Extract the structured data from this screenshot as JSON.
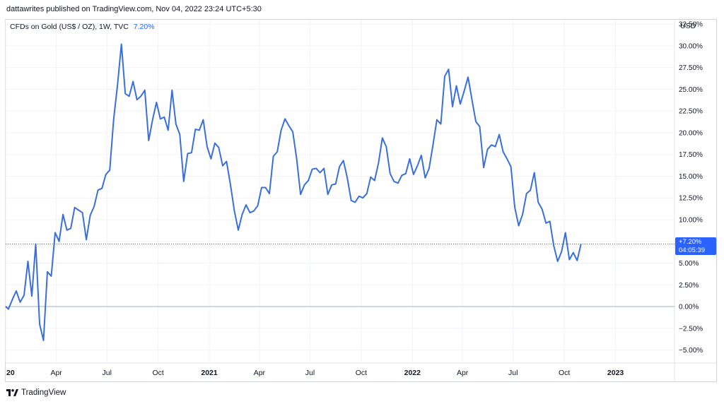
{
  "header": {
    "published_line": "dattawrites published on TradingView.com, Nov 04, 2022 23:24 UTC+5:30"
  },
  "legend": {
    "symbol": "CFDs on Gold (US$ / OZ), 1W, TVC",
    "change": "7.20%"
  },
  "currency": "USD",
  "last_value": {
    "change": "+7.20%",
    "countdown": "04:05:39"
  },
  "branding": {
    "name": "TradingView"
  },
  "colors": {
    "line": "#3b6fd8",
    "badge": "#2962ff",
    "grid": "#f0f3fa",
    "zero_line": "#9db2bd"
  },
  "chart_data": {
    "type": "line",
    "title": "CFDs on Gold (US$ / OZ), 1W, TVC",
    "ylabel": "USD",
    "yaxis_format": "percent",
    "ylim": [
      -6.5,
      33
    ],
    "xlim": [
      "2020-01-01",
      "2023-04-17"
    ],
    "y_ticks": [
      32.5,
      30,
      27.5,
      25,
      22.5,
      20,
      17.5,
      15,
      12.5,
      10,
      7.5,
      5,
      2.5,
      0,
      -2.5,
      -5
    ],
    "y_tick_labels": [
      "32.50%",
      "30.00%",
      "27.50%",
      "25.00%",
      "22.50%",
      "20.00%",
      "17.50%",
      "15.00%",
      "12.50%",
      "10.00%",
      "",
      "5.00%",
      "2.50%",
      "0.00%",
      "−2.50%",
      "−5.00%"
    ],
    "x_ticks": [
      {
        "date": "2020-01-01",
        "label": "20",
        "bold": true
      },
      {
        "date": "2020-04-01",
        "label": "Apr",
        "bold": false
      },
      {
        "date": "2020-07-01",
        "label": "Jul",
        "bold": false
      },
      {
        "date": "2020-10-01",
        "label": "Oct",
        "bold": false
      },
      {
        "date": "2021-01-01",
        "label": "2021",
        "bold": true
      },
      {
        "date": "2021-04-01",
        "label": "Apr",
        "bold": false
      },
      {
        "date": "2021-07-01",
        "label": "Jul",
        "bold": false
      },
      {
        "date": "2021-10-01",
        "label": "Oct",
        "bold": false
      },
      {
        "date": "2022-01-01",
        "label": "2022",
        "bold": true
      },
      {
        "date": "2022-04-01",
        "label": "Apr",
        "bold": false
      },
      {
        "date": "2022-07-01",
        "label": "Jul",
        "bold": false
      },
      {
        "date": "2022-10-01",
        "label": "Oct",
        "bold": false
      },
      {
        "date": "2023-01-01",
        "label": "2023",
        "bold": true
      }
    ],
    "series": [
      {
        "values": [
          [
            "2020-01-01",
            0.0
          ],
          [
            "2020-01-06",
            -0.3
          ],
          [
            "2020-01-13",
            0.8
          ],
          [
            "2020-01-20",
            1.8
          ],
          [
            "2020-01-27",
            0.5
          ],
          [
            "2020-02-03",
            1.3
          ],
          [
            "2020-02-10",
            5.2
          ],
          [
            "2020-02-17",
            1.2
          ],
          [
            "2020-02-24",
            7.2
          ],
          [
            "2020-03-02",
            -2.0
          ],
          [
            "2020-03-09",
            -3.9
          ],
          [
            "2020-03-16",
            4.0
          ],
          [
            "2020-03-23",
            3.5
          ],
          [
            "2020-03-30",
            8.5
          ],
          [
            "2020-04-06",
            7.5
          ],
          [
            "2020-04-13",
            10.6
          ],
          [
            "2020-04-20",
            8.8
          ],
          [
            "2020-04-27",
            9.0
          ],
          [
            "2020-05-04",
            11.4
          ],
          [
            "2020-05-11",
            11.1
          ],
          [
            "2020-05-18",
            10.8
          ],
          [
            "2020-05-25",
            7.7
          ],
          [
            "2020-06-01",
            10.5
          ],
          [
            "2020-06-08",
            11.5
          ],
          [
            "2020-06-15",
            13.4
          ],
          [
            "2020-06-22",
            13.6
          ],
          [
            "2020-06-29",
            15.2
          ],
          [
            "2020-07-06",
            15.7
          ],
          [
            "2020-07-13",
            21.5
          ],
          [
            "2020-07-20",
            25.5
          ],
          [
            "2020-07-27",
            30.2
          ],
          [
            "2020-08-03",
            24.5
          ],
          [
            "2020-08-10",
            24.2
          ],
          [
            "2020-08-17",
            25.9
          ],
          [
            "2020-08-24",
            23.8
          ],
          [
            "2020-08-31",
            24.2
          ],
          [
            "2020-09-07",
            24.9
          ],
          [
            "2020-09-14",
            19.1
          ],
          [
            "2020-09-21",
            21.5
          ],
          [
            "2020-09-28",
            23.5
          ],
          [
            "2020-10-05",
            21.6
          ],
          [
            "2020-10-12",
            21.8
          ],
          [
            "2020-10-19",
            20.3
          ],
          [
            "2020-10-26",
            24.9
          ],
          [
            "2020-11-02",
            21.0
          ],
          [
            "2020-11-09",
            19.8
          ],
          [
            "2020-11-16",
            14.4
          ],
          [
            "2020-11-23",
            17.6
          ],
          [
            "2020-11-30",
            17.7
          ],
          [
            "2020-12-07",
            20.4
          ],
          [
            "2020-12-14",
            20.3
          ],
          [
            "2020-12-21",
            21.5
          ],
          [
            "2020-12-28",
            18.4
          ],
          [
            "2021-01-04",
            17.0
          ],
          [
            "2021-01-11",
            18.8
          ],
          [
            "2021-01-18",
            18.3
          ],
          [
            "2021-01-25",
            16.2
          ],
          [
            "2021-02-01",
            16.7
          ],
          [
            "2021-02-08",
            14.0
          ],
          [
            "2021-02-15",
            11.0
          ],
          [
            "2021-02-22",
            8.8
          ],
          [
            "2021-03-01",
            10.6
          ],
          [
            "2021-03-08",
            11.7
          ],
          [
            "2021-03-15",
            10.8
          ],
          [
            "2021-03-22",
            11.0
          ],
          [
            "2021-03-29",
            11.6
          ],
          [
            "2021-04-05",
            13.7
          ],
          [
            "2021-04-12",
            13.7
          ],
          [
            "2021-04-19",
            13.0
          ],
          [
            "2021-04-26",
            17.3
          ],
          [
            "2021-05-03",
            17.8
          ],
          [
            "2021-05-10",
            20.3
          ],
          [
            "2021-05-17",
            21.6
          ],
          [
            "2021-05-24",
            20.8
          ],
          [
            "2021-05-31",
            20.1
          ],
          [
            "2021-06-07",
            17.0
          ],
          [
            "2021-06-14",
            12.9
          ],
          [
            "2021-06-21",
            14.0
          ],
          [
            "2021-06-28",
            14.5
          ],
          [
            "2021-07-05",
            15.8
          ],
          [
            "2021-07-12",
            15.9
          ],
          [
            "2021-07-19",
            15.4
          ],
          [
            "2021-07-26",
            15.9
          ],
          [
            "2021-08-02",
            12.9
          ],
          [
            "2021-08-09",
            14.0
          ],
          [
            "2021-08-16",
            14.1
          ],
          [
            "2021-08-23",
            16.1
          ],
          [
            "2021-08-30",
            16.8
          ],
          [
            "2021-09-06",
            14.8
          ],
          [
            "2021-09-13",
            12.2
          ],
          [
            "2021-09-20",
            12.0
          ],
          [
            "2021-09-27",
            12.7
          ],
          [
            "2021-10-04",
            12.5
          ],
          [
            "2021-10-11",
            13.0
          ],
          [
            "2021-10-18",
            14.9
          ],
          [
            "2021-10-25",
            14.5
          ],
          [
            "2021-11-01",
            16.5
          ],
          [
            "2021-11-08",
            19.4
          ],
          [
            "2021-11-15",
            18.4
          ],
          [
            "2021-11-22",
            15.3
          ],
          [
            "2021-11-29",
            14.4
          ],
          [
            "2021-12-06",
            14.2
          ],
          [
            "2021-12-13",
            15.1
          ],
          [
            "2021-12-20",
            15.3
          ],
          [
            "2021-12-27",
            17.0
          ],
          [
            "2022-01-03",
            15.2
          ],
          [
            "2022-01-10",
            16.2
          ],
          [
            "2022-01-17",
            17.4
          ],
          [
            "2022-01-24",
            14.8
          ],
          [
            "2022-01-31",
            15.9
          ],
          [
            "2022-02-07",
            18.6
          ],
          [
            "2022-02-14",
            21.5
          ],
          [
            "2022-02-21",
            21.0
          ],
          [
            "2022-02-28",
            26.5
          ],
          [
            "2022-03-07",
            27.3
          ],
          [
            "2022-03-14",
            23.0
          ],
          [
            "2022-03-21",
            25.4
          ],
          [
            "2022-03-28",
            23.3
          ],
          [
            "2022-04-04",
            24.8
          ],
          [
            "2022-04-11",
            26.4
          ],
          [
            "2022-04-18",
            23.8
          ],
          [
            "2022-04-25",
            21.3
          ],
          [
            "2022-05-02",
            20.7
          ],
          [
            "2022-05-09",
            16.0
          ],
          [
            "2022-05-16",
            18.1
          ],
          [
            "2022-05-23",
            18.6
          ],
          [
            "2022-05-30",
            18.4
          ],
          [
            "2022-06-06",
            19.8
          ],
          [
            "2022-06-13",
            17.8
          ],
          [
            "2022-06-20",
            17.0
          ],
          [
            "2022-06-27",
            16.1
          ],
          [
            "2022-07-04",
            11.4
          ],
          [
            "2022-07-11",
            9.3
          ],
          [
            "2022-07-18",
            10.6
          ],
          [
            "2022-07-25",
            13.0
          ],
          [
            "2022-08-01",
            13.4
          ],
          [
            "2022-08-08",
            15.4
          ],
          [
            "2022-08-15",
            12.0
          ],
          [
            "2022-08-22",
            11.2
          ],
          [
            "2022-08-29",
            9.6
          ],
          [
            "2022-09-05",
            9.8
          ],
          [
            "2022-09-12",
            7.0
          ],
          [
            "2022-09-19",
            5.2
          ],
          [
            "2022-09-26",
            6.3
          ],
          [
            "2022-10-03",
            8.5
          ],
          [
            "2022-10-10",
            5.4
          ],
          [
            "2022-10-17",
            6.2
          ],
          [
            "2022-10-24",
            5.3
          ],
          [
            "2022-10-31",
            7.2
          ]
        ]
      }
    ],
    "last_marker": {
      "value": 7.2
    },
    "zero_line": true,
    "grid": true
  }
}
